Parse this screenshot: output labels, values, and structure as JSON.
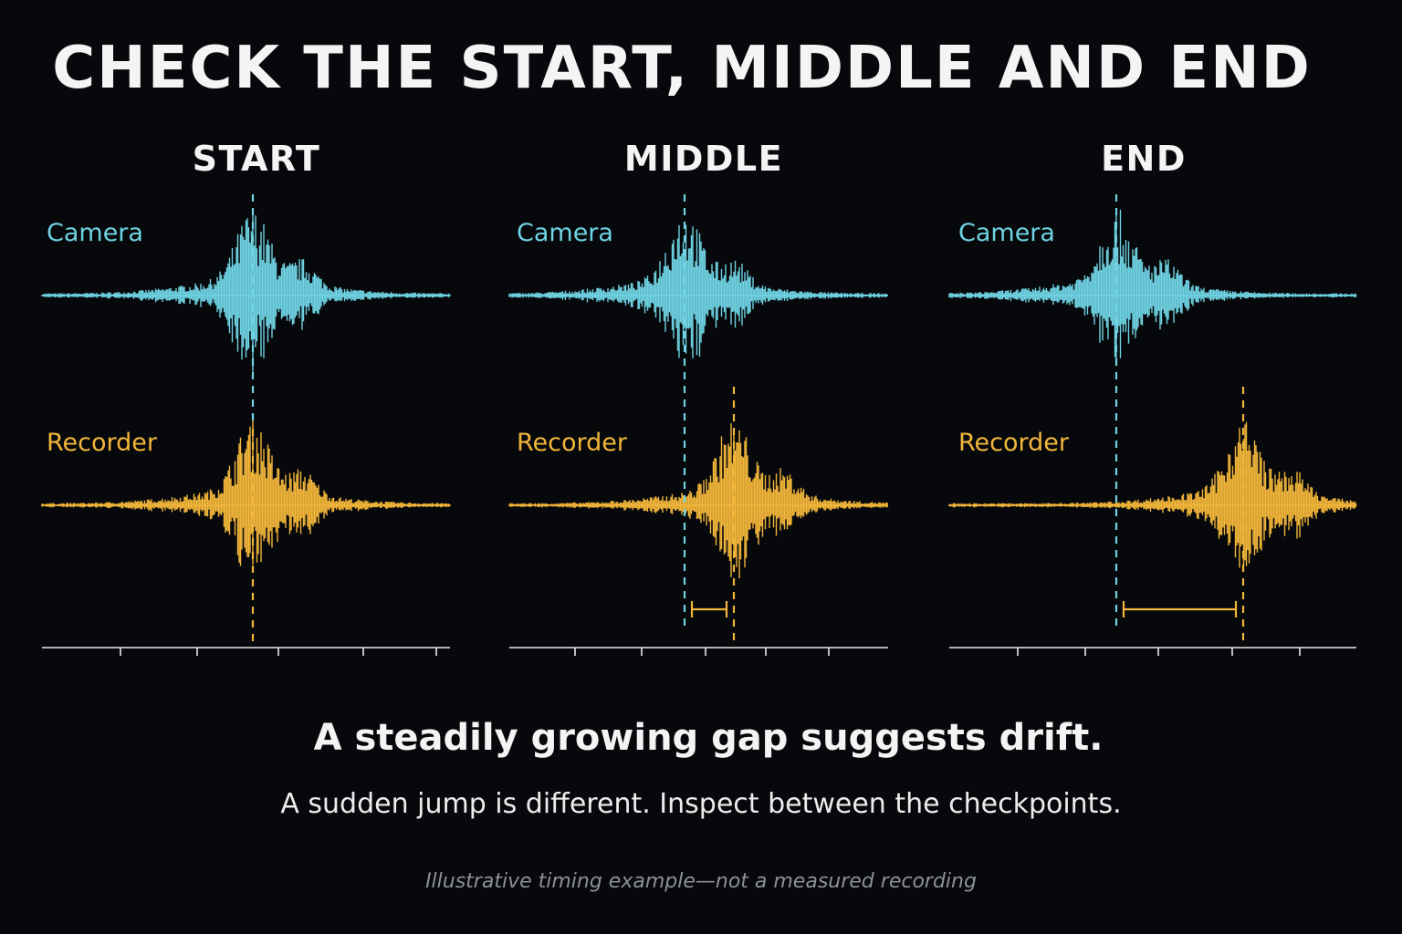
{
  "title": "CHECK THE START, MIDDLE AND END",
  "panels": [
    {
      "title": "START",
      "camera_label": "Camera",
      "recorder_label": "Recorder",
      "gap": 0
    },
    {
      "title": "MIDDLE",
      "camera_label": "Camera",
      "recorder_label": "Recorder",
      "gap": 1
    },
    {
      "title": "END",
      "camera_label": "Camera",
      "recorder_label": "Recorder",
      "gap": 3
    }
  ],
  "headline": "A steadily growing gap suggests drift.",
  "subtext": "A sudden jump is different. Inspect between the checkpoints.",
  "footnote": "Illustrative timing example—not a measured recording",
  "colors": {
    "camera": "#6fd3e3",
    "recorder": "#f2b63a",
    "axis": "#e8e8e8",
    "background": "#06080b"
  }
}
